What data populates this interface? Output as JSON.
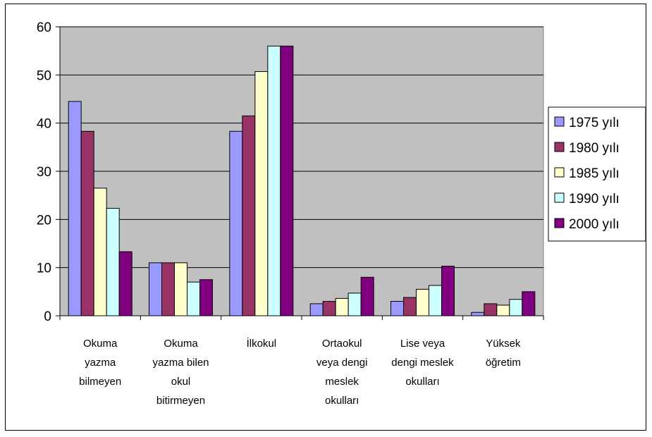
{
  "chart_data": {
    "type": "bar",
    "title": "",
    "xlabel": "",
    "ylabel": "",
    "ylim": [
      0,
      60
    ],
    "yticks": [
      0,
      10,
      20,
      30,
      40,
      50,
      60
    ],
    "grid": true,
    "legend_position": "right",
    "categories": [
      [
        "Okuma",
        "yazma",
        "bilmeyen"
      ],
      [
        "Okuma",
        "yazma bilen",
        "okul",
        "bitirmeyen"
      ],
      [
        "İlkokul"
      ],
      [
        "Ortaokul",
        "veya dengi",
        "meslek",
        "okulları"
      ],
      [
        "Lise veya",
        "dengi meslek",
        "okulları"
      ],
      [
        "Yüksek",
        "öğretim"
      ]
    ],
    "series": [
      {
        "name": "1975 yılı",
        "color": "#9999ff",
        "values": [
          44.5,
          11,
          38.3,
          2.5,
          3,
          0.7
        ]
      },
      {
        "name": "1980 yılı",
        "color": "#993366",
        "values": [
          38.3,
          11,
          41.5,
          3,
          3.8,
          2.5
        ]
      },
      {
        "name": "1985 yılı",
        "color": "#ffffcc",
        "values": [
          26.5,
          11,
          50.7,
          3.6,
          5.5,
          2.2
        ]
      },
      {
        "name": "1990 yılı",
        "color": "#ccffff",
        "values": [
          22.3,
          7,
          56,
          4.7,
          6.3,
          3.4
        ]
      },
      {
        "name": "2000 yılı",
        "color": "#800080",
        "values": [
          13.3,
          7.5,
          56,
          8,
          10.3,
          5
        ]
      }
    ]
  }
}
